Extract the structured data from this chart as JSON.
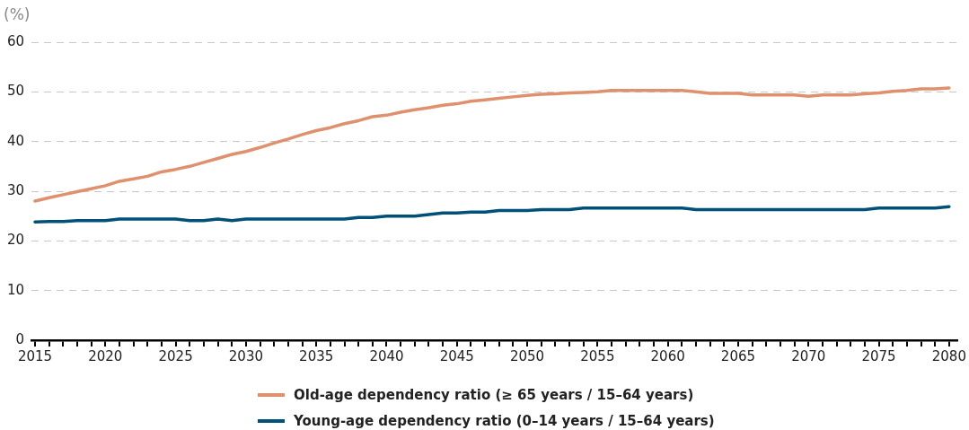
{
  "chart_data": {
    "type": "line",
    "ylabel": "(%)",
    "x": [
      2015,
      2016,
      2017,
      2018,
      2019,
      2020,
      2021,
      2022,
      2023,
      2024,
      2025,
      2026,
      2027,
      2028,
      2029,
      2030,
      2031,
      2032,
      2033,
      2034,
      2035,
      2036,
      2037,
      2038,
      2039,
      2040,
      2041,
      2042,
      2043,
      2044,
      2045,
      2046,
      2047,
      2048,
      2049,
      2050,
      2051,
      2052,
      2053,
      2054,
      2055,
      2056,
      2057,
      2058,
      2059,
      2060,
      2061,
      2062,
      2063,
      2064,
      2065,
      2066,
      2067,
      2068,
      2069,
      2070,
      2071,
      2072,
      2073,
      2074,
      2075,
      2076,
      2077,
      2078,
      2079,
      2080
    ],
    "series": [
      {
        "name": "Old-age dependency ratio (≥  65 years / 15–64 years)",
        "color": "#df906c",
        "values": [
          28,
          28.7,
          29.3,
          29.9,
          30.5,
          31.1,
          32,
          32.5,
          33,
          33.9,
          34.4,
          35,
          35.8,
          36.6,
          37.4,
          38,
          38.8,
          39.7,
          40.5,
          41.4,
          42.2,
          42.8,
          43.6,
          44.2,
          45,
          45.3,
          45.9,
          46.4,
          46.8,
          47.3,
          47.6,
          48.1,
          48.4,
          48.7,
          49,
          49.3,
          49.5,
          49.6,
          49.8,
          49.9,
          50,
          50.3,
          50.3,
          50.3,
          50.3,
          50.3,
          50.3,
          50,
          49.7,
          49.7,
          49.7,
          49.4,
          49.4,
          49.4,
          49.4,
          49.1,
          49.4,
          49.4,
          49.4,
          49.6,
          49.8,
          50.1,
          50.3,
          50.6,
          50.6,
          50.8
        ]
      },
      {
        "name": "Young-age dependency ratio (0–14 years / 15–64 years)",
        "color": "#005078",
        "values": [
          23.8,
          23.9,
          23.9,
          24.1,
          24.1,
          24.1,
          24.4,
          24.4,
          24.4,
          24.4,
          24.4,
          24.1,
          24.1,
          24.4,
          24.1,
          24.4,
          24.4,
          24.4,
          24.4,
          24.4,
          24.4,
          24.4,
          24.4,
          24.7,
          24.7,
          25,
          25,
          25,
          25.3,
          25.6,
          25.6,
          25.8,
          25.8,
          26.1,
          26.1,
          26.1,
          26.3,
          26.3,
          26.3,
          26.6,
          26.6,
          26.6,
          26.6,
          26.6,
          26.6,
          26.6,
          26.6,
          26.3,
          26.3,
          26.3,
          26.3,
          26.3,
          26.3,
          26.3,
          26.3,
          26.3,
          26.3,
          26.3,
          26.3,
          26.3,
          26.6,
          26.6,
          26.6,
          26.6,
          26.6,
          26.9
        ]
      }
    ],
    "xlim": [
      2014.75,
      2080.6
    ],
    "xticks": [
      2015,
      {
        "value": 2016,
        "label": null
      },
      {
        "value": 2017,
        "label": null
      },
      {
        "value": 2018,
        "label": null
      },
      {
        "value": 2019,
        "label": null
      },
      2020,
      {
        "value": 2021,
        "label": null
      },
      {
        "value": 2022,
        "label": null
      },
      {
        "value": 2023,
        "label": null
      },
      {
        "value": 2024,
        "label": null
      },
      2025,
      {
        "value": 2026,
        "label": null
      },
      {
        "value": 2027,
        "label": null
      },
      {
        "value": 2028,
        "label": null
      },
      {
        "value": 2029,
        "label": null
      },
      2030,
      {
        "value": 2031,
        "label": null
      },
      {
        "value": 2032,
        "label": null
      },
      {
        "value": 2033,
        "label": null
      },
      {
        "value": 2034,
        "label": null
      },
      2035,
      {
        "value": 2036,
        "label": null
      },
      {
        "value": 2037,
        "label": null
      },
      {
        "value": 2038,
        "label": null
      },
      {
        "value": 2039,
        "label": null
      },
      2040,
      {
        "value": 2041,
        "label": null
      },
      {
        "value": 2042,
        "label": null
      },
      {
        "value": 2043,
        "label": null
      },
      {
        "value": 2044,
        "label": null
      },
      2045,
      {
        "value": 2046,
        "label": null
      },
      {
        "value": 2047,
        "label": null
      },
      {
        "value": 2048,
        "label": null
      },
      {
        "value": 2049,
        "label": null
      },
      2050,
      {
        "value": 2051,
        "label": null
      },
      {
        "value": 2052,
        "label": null
      },
      {
        "value": 2053,
        "label": null
      },
      {
        "value": 2054,
        "label": null
      },
      2055,
      {
        "value": 2056,
        "label": null
      },
      {
        "value": 2057,
        "label": null
      },
      {
        "value": 2058,
        "label": null
      },
      {
        "value": 2059,
        "label": null
      },
      2060,
      {
        "value": 2061,
        "label": null
      },
      {
        "value": 2062,
        "label": null
      },
      {
        "value": 2063,
        "label": null
      },
      {
        "value": 2064,
        "label": null
      },
      2065,
      {
        "value": 2066,
        "label": null
      },
      {
        "value": 2067,
        "label": null
      },
      {
        "value": 2068,
        "label": null
      },
      {
        "value": 2069,
        "label": null
      },
      2070,
      {
        "value": 2071,
        "label": null
      },
      {
        "value": 2072,
        "label": null
      },
      {
        "value": 2073,
        "label": null
      },
      {
        "value": 2074,
        "label": null
      },
      2075,
      {
        "value": 2076,
        "label": null
      },
      {
        "value": 2077,
        "label": null
      },
      {
        "value": 2078,
        "label": null
      },
      {
        "value": 2079,
        "label": null
      },
      2080
    ],
    "ylim": [
      0,
      60
    ],
    "yticks": [
      0,
      10,
      20,
      30,
      40,
      50,
      60
    ],
    "grid": "y",
    "legend": "bottom",
    "marker": "none",
    "line_style": "solid"
  }
}
